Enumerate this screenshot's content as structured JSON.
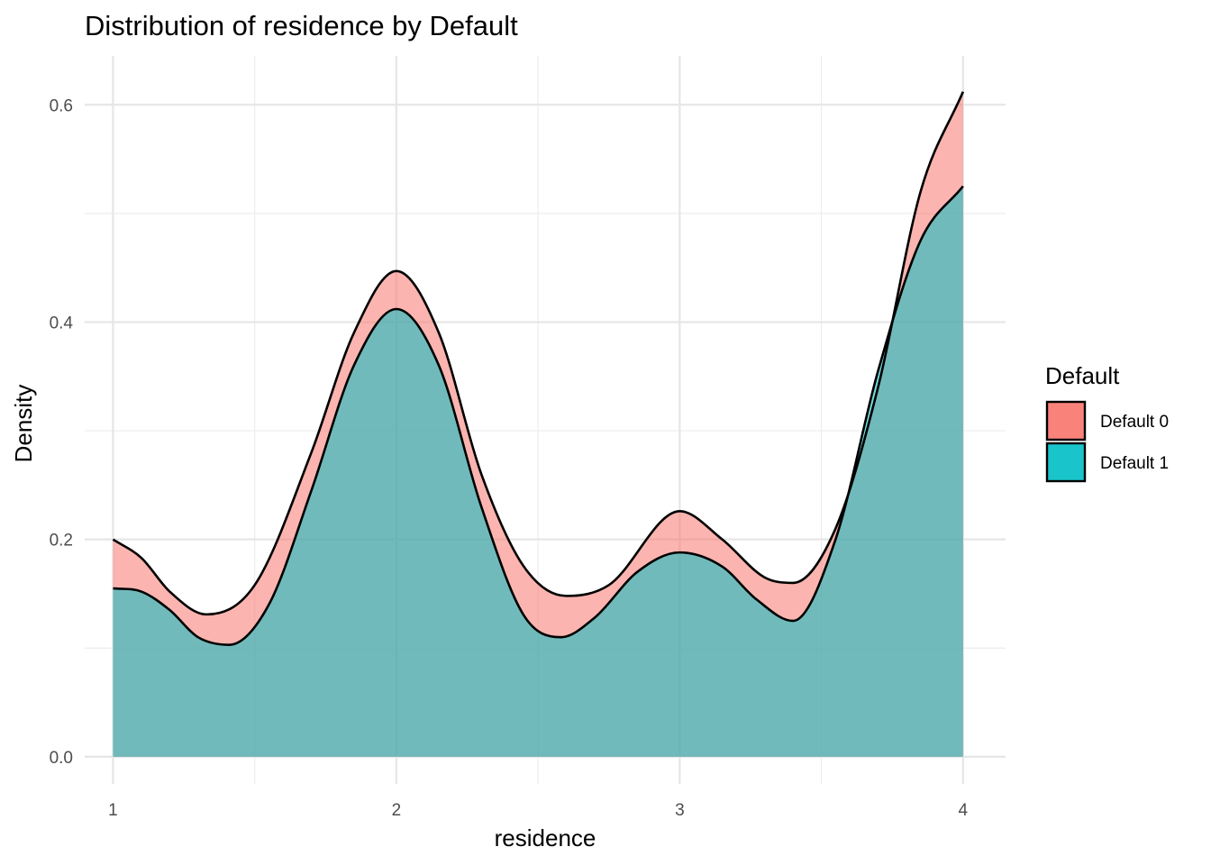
{
  "chart_data": {
    "type": "area",
    "subtype": "density",
    "title": "Distribution of residence by Default",
    "xlabel": "residence",
    "ylabel": "Density",
    "xlim": [
      0.9,
      4.15
    ],
    "ylim": [
      -0.025,
      0.645
    ],
    "x_ticks": [
      1,
      2,
      3,
      4
    ],
    "x_tick_labels": [
      "1",
      "2",
      "3",
      "4"
    ],
    "y_ticks": [
      0,
      0.2,
      0.4,
      0.6
    ],
    "y_tick_labels": [
      "0.0",
      "0.2",
      "0.4",
      "0.6"
    ],
    "grid": true,
    "legend": {
      "title": "Default",
      "position": "right"
    },
    "series": [
      {
        "name": "Default 0",
        "color": "#F8766D",
        "x": [
          1.0,
          1.1,
          1.2,
          1.33,
          1.5,
          1.7,
          1.85,
          2.0,
          2.15,
          2.3,
          2.45,
          2.6,
          2.75,
          3.0,
          3.15,
          3.3,
          3.4,
          3.55,
          3.7,
          3.85,
          4.0
        ],
        "y": [
          0.2,
          0.183,
          0.152,
          0.131,
          0.158,
          0.28,
          0.39,
          0.447,
          0.39,
          0.26,
          0.175,
          0.148,
          0.158,
          0.226,
          0.2,
          0.165,
          0.16,
          0.21,
          0.34,
          0.52,
          0.612
        ]
      },
      {
        "name": "Default 1",
        "color": "#00BFC4",
        "x": [
          1.0,
          1.1,
          1.2,
          1.3,
          1.41,
          1.55,
          1.7,
          1.85,
          2.0,
          2.15,
          2.3,
          2.45,
          2.58,
          2.7,
          2.85,
          3.0,
          3.15,
          3.27,
          3.4,
          3.55,
          3.7,
          3.85,
          4.0
        ],
        "y": [
          0.155,
          0.152,
          0.135,
          0.11,
          0.103,
          0.14,
          0.245,
          0.36,
          0.412,
          0.36,
          0.23,
          0.13,
          0.11,
          0.128,
          0.17,
          0.188,
          0.175,
          0.145,
          0.125,
          0.2,
          0.355,
          0.475,
          0.525
        ]
      }
    ]
  }
}
